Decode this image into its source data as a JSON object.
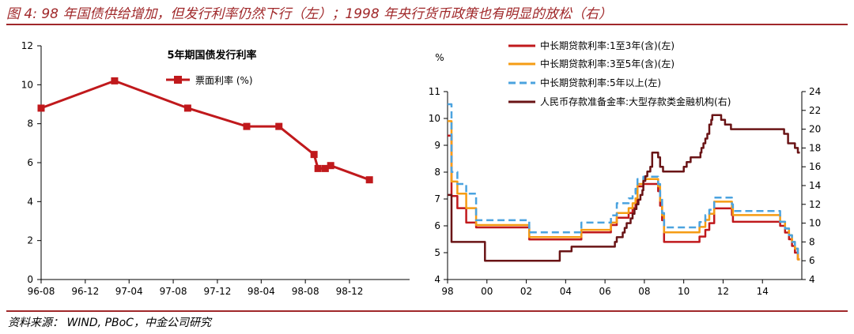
{
  "figure": {
    "title": "图 4: 98 年国债供给增加，但发行利率仍然下行（左）；1998 年央行货币政策也有明显的放松（右）",
    "source": "资料来源： WIND, PBoC，中金公司研究"
  },
  "colors": {
    "accent": "#a0282a",
    "dark_red": "#6a1416",
    "red": "#c0191c",
    "orange": "#f59c14",
    "blue": "#4ba3df"
  },
  "chart_data": [
    {
      "type": "line",
      "title": "5年期国债发行利率",
      "xlabel": "",
      "ylabel": "",
      "ylim": [
        0,
        12
      ],
      "yticks": [
        "0",
        "2",
        "4",
        "6",
        "8",
        "10",
        "12"
      ],
      "xticks": [
        "96-08",
        "96-12",
        "97-04",
        "97-08",
        "97-12",
        "98-04",
        "98-08",
        "98-12"
      ],
      "legend_position": "top-center",
      "grid": false,
      "series": [
        {
          "name": "票面利率 (%)",
          "color": "#c0191c",
          "marker": "square",
          "x": [
            "1996-08-01",
            "1997-02-20",
            "1997-09-10",
            "1998-02-20",
            "1998-05-20",
            "1998-08-25",
            "1998-09-05",
            "1998-09-25",
            "1998-10-10",
            "1999-01-25"
          ],
          "y": [
            8.8,
            10.2,
            8.8,
            7.86,
            7.86,
            6.42,
            5.7,
            5.7,
            5.85,
            5.12
          ]
        }
      ]
    },
    {
      "type": "line",
      "title": "",
      "y_left_label": "%",
      "ylim_left": [
        4,
        11
      ],
      "ylim_right": [
        4,
        24
      ],
      "yticks_left": [
        "4",
        "5",
        "6",
        "7",
        "8",
        "9",
        "10",
        "11"
      ],
      "yticks_right": [
        "4",
        "6",
        "8",
        "10",
        "12",
        "14",
        "16",
        "18",
        "20",
        "22",
        "24"
      ],
      "xticks": [
        "98",
        "00",
        "02",
        "04",
        "06",
        "08",
        "10",
        "12",
        "14"
      ],
      "xlim": [
        1998,
        2016
      ],
      "legend_position": "top",
      "grid": false,
      "series": [
        {
          "name": "中长期贷款利率:1至3年(含)(左)",
          "axis": "left",
          "color": "#c0191c",
          "style": "solid",
          "x": [
            1998.0,
            1998.2,
            1998.2,
            1998.5,
            1998.5,
            1998.95,
            1998.95,
            1999.45,
            1999.45,
            2002.15,
            2002.15,
            2004.8,
            2004.8,
            2006.3,
            2006.3,
            2006.6,
            2006.6,
            2007.2,
            2007.2,
            2007.4,
            2007.4,
            2007.55,
            2007.55,
            2007.65,
            2007.65,
            2007.95,
            2007.95,
            2008.7,
            2008.7,
            2008.8,
            2008.8,
            2008.9,
            2008.9,
            2009.0,
            2009.0,
            2010.8,
            2010.8,
            2011.1,
            2011.1,
            2011.3,
            2011.3,
            2011.55,
            2011.55,
            2012.45,
            2012.45,
            2012.5,
            2012.5,
            2014.9,
            2014.9,
            2015.15,
            2015.15,
            2015.35,
            2015.35,
            2015.5,
            2015.5,
            2015.65,
            2015.65,
            2015.8,
            2015.8,
            2015.9
          ],
          "y": [
            9.36,
            9.36,
            7.11,
            7.11,
            6.66,
            6.66,
            6.12,
            6.12,
            5.94,
            5.94,
            5.49,
            5.49,
            5.76,
            5.76,
            6.03,
            6.03,
            6.3,
            6.3,
            6.48,
            6.48,
            6.66,
            6.66,
            6.84,
            6.84,
            7.47,
            7.47,
            7.56,
            7.56,
            7.29,
            7.29,
            6.75,
            6.75,
            6.21,
            6.21,
            5.4,
            5.4,
            5.6,
            5.6,
            5.85,
            5.85,
            6.1,
            6.1,
            6.65,
            6.65,
            6.4,
            6.4,
            6.15,
            6.15,
            6.0,
            6.0,
            5.75,
            5.75,
            5.5,
            5.5,
            5.25,
            5.25,
            5.0,
            5.0,
            4.75,
            4.75
          ]
        },
        {
          "name": "中长期贷款利率:3至5年(含)(左)",
          "axis": "left",
          "color": "#f59c14",
          "style": "solid",
          "x": [
            1998.0,
            1998.2,
            1998.2,
            1998.5,
            1998.5,
            1998.95,
            1998.95,
            1999.45,
            1999.45,
            2002.15,
            2002.15,
            2004.8,
            2004.8,
            2006.3,
            2006.3,
            2006.6,
            2006.6,
            2007.2,
            2007.2,
            2007.4,
            2007.4,
            2007.55,
            2007.55,
            2007.65,
            2007.65,
            2007.95,
            2007.95,
            2008.7,
            2008.7,
            2008.8,
            2008.8,
            2008.9,
            2008.9,
            2009.0,
            2009.0,
            2010.8,
            2010.8,
            2011.1,
            2011.1,
            2011.3,
            2011.3,
            2011.55,
            2011.55,
            2012.45,
            2012.45,
            2012.5,
            2012.5,
            2014.9,
            2014.9,
            2015.15,
            2015.15,
            2015.35,
            2015.35,
            2015.5,
            2015.5,
            2015.65,
            2015.65,
            2015.8,
            2015.8,
            2015.9
          ],
          "y": [
            9.9,
            9.9,
            7.65,
            7.65,
            7.2,
            7.2,
            6.66,
            6.66,
            6.03,
            6.03,
            5.58,
            5.58,
            5.85,
            5.85,
            6.12,
            6.12,
            6.48,
            6.48,
            6.66,
            6.66,
            6.84,
            6.84,
            7.02,
            7.02,
            7.56,
            7.56,
            7.74,
            7.74,
            7.47,
            7.47,
            6.93,
            6.93,
            6.39,
            6.39,
            5.76,
            5.76,
            5.96,
            5.96,
            6.22,
            6.22,
            6.45,
            6.45,
            6.9,
            6.9,
            6.65,
            6.65,
            6.4,
            6.4,
            6.15,
            6.15,
            5.9,
            5.9,
            5.65,
            5.65,
            5.4,
            5.4,
            5.15,
            5.15,
            4.75,
            4.75
          ]
        },
        {
          "name": "中长期贷款利率:5年以上(左)",
          "axis": "left",
          "color": "#4ba3df",
          "style": "dashed",
          "x": [
            1998.0,
            1998.2,
            1998.2,
            1998.5,
            1998.5,
            1998.95,
            1998.95,
            1999.45,
            1999.45,
            2002.15,
            2002.15,
            2004.8,
            2004.8,
            2006.3,
            2006.3,
            2006.6,
            2006.6,
            2007.2,
            2007.2,
            2007.4,
            2007.4,
            2007.55,
            2007.55,
            2007.65,
            2007.65,
            2007.95,
            2007.95,
            2008.7,
            2008.7,
            2008.8,
            2008.8,
            2008.9,
            2008.9,
            2009.0,
            2009.0,
            2010.8,
            2010.8,
            2011.1,
            2011.1,
            2011.3,
            2011.3,
            2011.55,
            2011.55,
            2012.45,
            2012.45,
            2012.5,
            2012.5,
            2014.9,
            2014.9,
            2015.15,
            2015.15,
            2015.35,
            2015.35,
            2015.5,
            2015.5,
            2015.65,
            2015.65,
            2015.8,
            2015.8,
            2015.9
          ],
          "y": [
            10.53,
            10.53,
            8.01,
            8.01,
            7.56,
            7.56,
            7.2,
            7.2,
            6.21,
            6.21,
            5.76,
            5.76,
            6.12,
            6.12,
            6.39,
            6.39,
            6.84,
            6.84,
            7.02,
            7.02,
            7.2,
            7.2,
            7.38,
            7.38,
            7.74,
            7.74,
            7.83,
            7.83,
            7.56,
            7.56,
            7.02,
            7.02,
            6.48,
            6.48,
            5.94,
            5.94,
            6.14,
            6.14,
            6.4,
            6.4,
            6.6,
            6.6,
            7.05,
            7.05,
            6.8,
            6.8,
            6.55,
            6.55,
            6.15,
            6.15,
            5.9,
            5.9,
            5.65,
            5.65,
            5.4,
            5.4,
            5.15,
            5.15,
            4.9,
            4.9
          ]
        },
        {
          "name": "人民币存款准备金率:大型存款类金融机构(右)",
          "axis": "right",
          "color": "#6a1416",
          "style": "solid",
          "x": [
            1998.0,
            1998.2,
            1998.2,
            1999.9,
            1999.9,
            2003.7,
            2003.7,
            2004.3,
            2004.3,
            2006.5,
            2006.5,
            2006.6,
            2006.6,
            2006.9,
            2006.9,
            2007.0,
            2007.0,
            2007.1,
            2007.1,
            2007.3,
            2007.3,
            2007.4,
            2007.4,
            2007.5,
            2007.5,
            2007.6,
            2007.6,
            2007.7,
            2007.7,
            2007.8,
            2007.8,
            2007.9,
            2007.9,
            2007.95,
            2007.95,
            2008.05,
            2008.05,
            2008.15,
            2008.15,
            2008.3,
            2008.3,
            2008.4,
            2008.4,
            2008.7,
            2008.7,
            2008.8,
            2008.8,
            2008.95,
            2008.95,
            2010.0,
            2010.0,
            2010.15,
            2010.15,
            2010.35,
            2010.35,
            2010.85,
            2010.85,
            2010.9,
            2010.9,
            2011.0,
            2011.0,
            2011.1,
            2011.1,
            2011.2,
            2011.2,
            2011.3,
            2011.3,
            2011.4,
            2011.4,
            2011.45,
            2011.45,
            2011.9,
            2011.9,
            2012.1,
            2012.1,
            2012.4,
            2012.4,
            2015.1,
            2015.1,
            2015.3,
            2015.3,
            2015.65,
            2015.65,
            2015.8,
            2015.8,
            2015.9
          ],
          "y": [
            13.0,
            13.0,
            8.0,
            8.0,
            6.0,
            6.0,
            7.0,
            7.0,
            7.5,
            7.5,
            8.0,
            8.0,
            8.5,
            8.5,
            9.0,
            9.0,
            9.5,
            9.5,
            10.0,
            10.0,
            10.5,
            10.5,
            11.0,
            11.0,
            11.5,
            11.5,
            12.0,
            12.0,
            12.5,
            12.5,
            13.0,
            13.0,
            13.5,
            13.5,
            14.5,
            14.5,
            15.0,
            15.0,
            15.5,
            15.5,
            16.0,
            16.0,
            17.5,
            17.5,
            17.0,
            17.0,
            16.0,
            16.0,
            15.5,
            15.5,
            16.0,
            16.0,
            16.5,
            16.5,
            17.0,
            17.0,
            17.5,
            17.5,
            18.0,
            18.0,
            18.5,
            18.5,
            19.0,
            19.0,
            19.5,
            19.5,
            20.5,
            20.5,
            21.0,
            21.0,
            21.5,
            21.5,
            21.0,
            21.0,
            20.5,
            20.5,
            20.0,
            20.0,
            19.5,
            19.5,
            18.5,
            18.5,
            18.0,
            18.0,
            17.5,
            17.5
          ]
        }
      ]
    }
  ]
}
